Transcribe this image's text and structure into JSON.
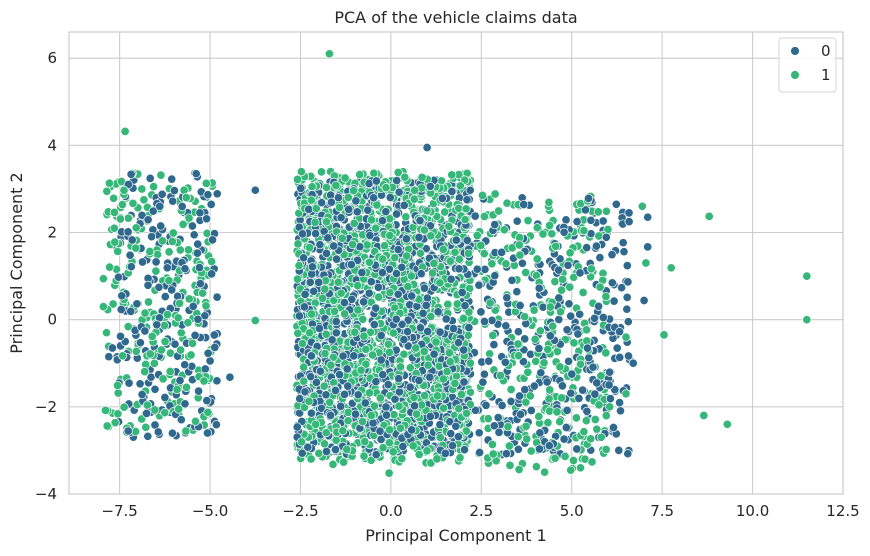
{
  "chart_data": {
    "type": "scatter",
    "title": "PCA of the vehicle claims data",
    "xlabel": "Principal Component 1",
    "ylabel": "Principal Component 2",
    "xlim": [
      -8.9,
      12.5
    ],
    "ylim": [
      -4.0,
      6.6
    ],
    "xticks": [
      -7.5,
      -5.0,
      -2.5,
      0.0,
      2.5,
      5.0,
      7.5,
      10.0,
      12.5
    ],
    "xtick_labels": [
      "−7.5",
      "−5.0",
      "−2.5",
      "0.0",
      "2.5",
      "5.0",
      "7.5",
      "10.0",
      "12.5"
    ],
    "yticks": [
      -4,
      -2,
      0,
      2,
      4,
      6
    ],
    "ytick_labels": [
      "−4",
      "−2",
      "0",
      "2",
      "4",
      "6"
    ],
    "grid": true,
    "legend": {
      "placement": "top-right",
      "entries": [
        "0",
        "1"
      ]
    },
    "series": [
      {
        "name": "0",
        "color": "#30698e",
        "clusters": [
          {
            "x": [
              -7.6,
              -4.8
            ],
            "y": [
              -2.7,
              3.4
            ]
          },
          {
            "x": [
              -2.6,
              2.2
            ],
            "y": [
              -3.1,
              3.2
            ]
          },
          {
            "x": [
              2.3,
              6.6
            ],
            "y": [
              -3.1,
              2.8
            ]
          }
        ],
        "points": [
          [
            1.0,
            3.95
          ],
          [
            -3.75,
            2.97
          ],
          [
            -4.45,
            -1.32
          ],
          [
            -7.8,
            -0.85
          ],
          [
            -7.7,
            -0.65
          ],
          [
            7.1,
            1.67
          ],
          [
            7.0,
            0.44
          ],
          [
            7.1,
            2.35
          ],
          [
            6.3,
            -3.0
          ],
          [
            6.7,
            -1.0
          ]
        ]
      },
      {
        "name": "1",
        "color": "#35b779",
        "clusters": [
          {
            "x": [
              -7.9,
              -4.9
            ],
            "y": [
              -2.6,
              3.4
            ]
          },
          {
            "x": [
              -2.6,
              2.2
            ],
            "y": [
              -3.3,
              3.4
            ]
          },
          {
            "x": [
              2.3,
              6.0
            ],
            "y": [
              -3.5,
              2.9
            ]
          }
        ],
        "points": [
          [
            -1.7,
            6.1
          ],
          [
            -7.35,
            4.32
          ],
          [
            11.5,
            1.0
          ],
          [
            11.5,
            0.0
          ],
          [
            8.8,
            2.37
          ],
          [
            9.3,
            -2.4
          ],
          [
            8.65,
            -2.2
          ],
          [
            7.75,
            1.19
          ],
          [
            7.55,
            -0.35
          ],
          [
            6.95,
            2.6
          ],
          [
            7.05,
            1.3
          ],
          [
            -7.95,
            0.94
          ],
          [
            -7.95,
            0.3
          ],
          [
            -3.75,
            -0.02
          ],
          [
            6.5,
            -1.7
          ],
          [
            6.5,
            -0.4
          ],
          [
            6.05,
            -2.0
          ],
          [
            -1.6,
            -3.32
          ],
          [
            -0.05,
            -3.52
          ],
          [
            4.25,
            -3.5
          ]
        ]
      }
    ]
  }
}
